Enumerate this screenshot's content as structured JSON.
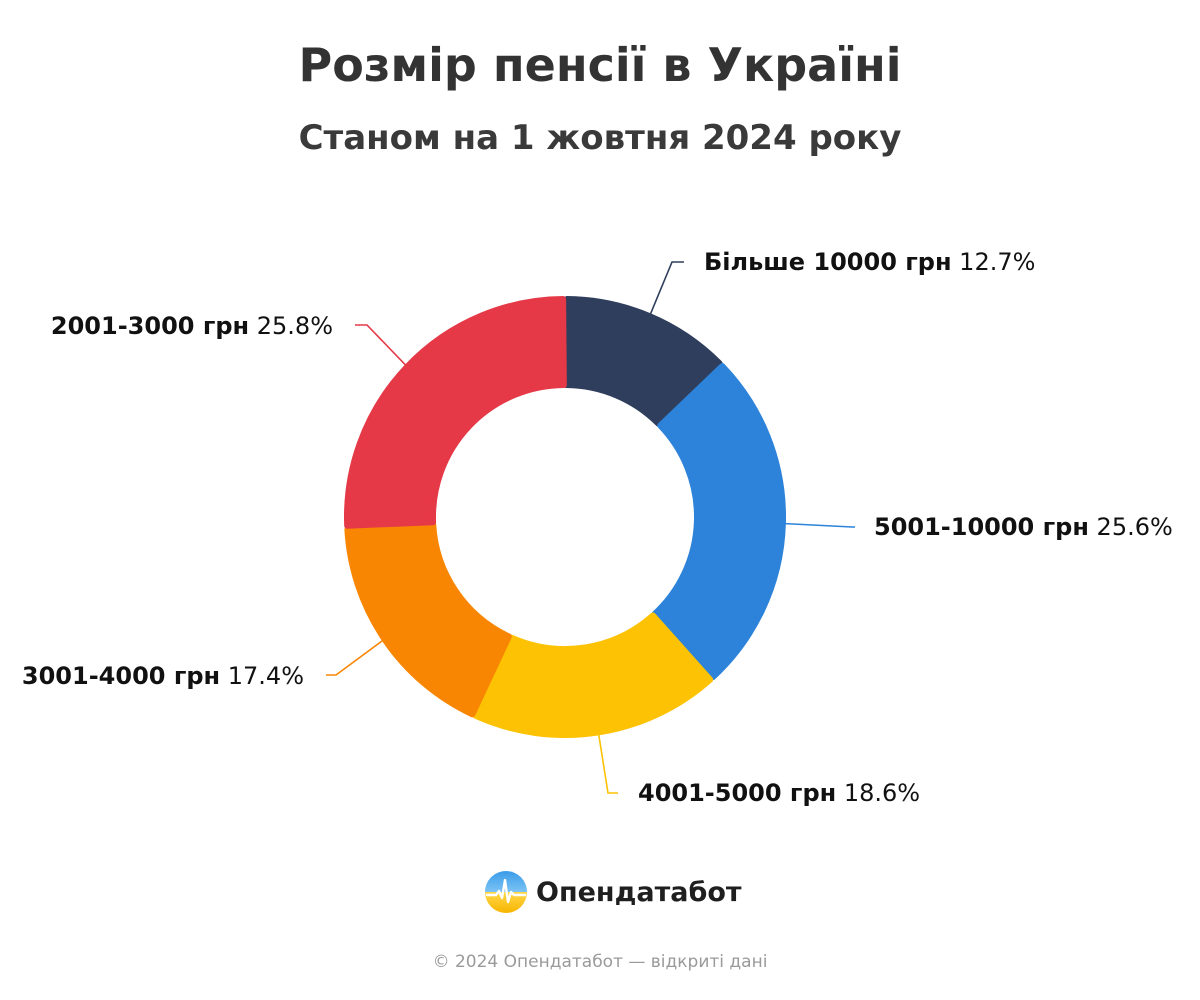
{
  "header": {
    "title": "Розмір пенсії в Україні",
    "subtitle": "Станом на 1 жовтня 2024 року"
  },
  "chart_data": {
    "type": "pie",
    "title": "Розмір пенсії в Україні",
    "subtitle": "Станом на 1 жовтня 2024 року",
    "donut": true,
    "unit": "%",
    "slices": [
      {
        "label": "Більше 10000 грн",
        "value": 12.7,
        "value_label": "12.7%",
        "color": "#2e3e5c"
      },
      {
        "label": "5001-10000 грн",
        "value": 25.6,
        "value_label": "25.6%",
        "color": "#2d83d9"
      },
      {
        "label": "4001-5000 грн",
        "value": 18.6,
        "value_label": "18.6%",
        "color": "#fcc203"
      },
      {
        "label": "3001-4000 грн",
        "value": 17.4,
        "value_label": "17.4%",
        "color": "#f98603"
      },
      {
        "label": "2001-3000 грн",
        "value": 25.8,
        "value_label": "25.8%",
        "color": "#e63947"
      }
    ],
    "legend": "none"
  },
  "brand": {
    "name": "Опендатабот",
    "logo_icon": "opendatabot-logo-icon"
  },
  "footer": {
    "text": "© 2024 Опендатабот — відкриті дані"
  }
}
